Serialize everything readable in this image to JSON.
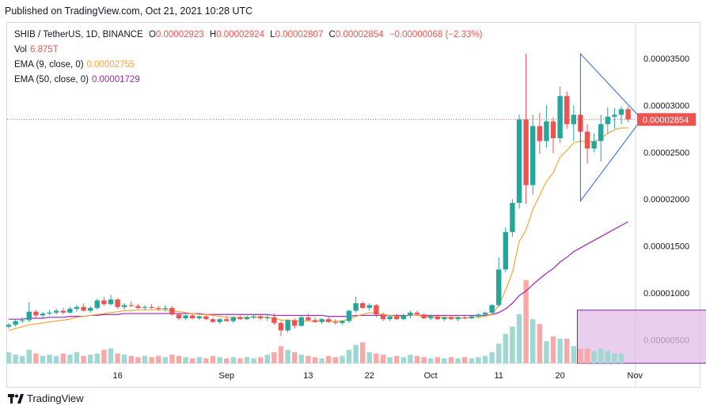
{
  "published": "Published on TradingView.com, Oct 21, 2021 10:28 UTC",
  "legend": {
    "symbol": "SHIB / TetherUS, 1D, BINANCE",
    "o_label": "O",
    "o_value": "0.00002923",
    "h_label": "H",
    "h_value": "0.00002924",
    "l_label": "L",
    "l_value": "0.00002807",
    "c_label": "C",
    "c_value": "0.00002854",
    "change": "−0.00000068 (−2.33%)",
    "vol_label": "Vol",
    "vol_value": "6.875T",
    "ema9_label": "EMA (9, close, 0)",
    "ema9_value": "0.00002755",
    "ema50_label": "EMA (50, close, 0)",
    "ema50_value": "0.00001729"
  },
  "last_price_tag": "0.00002854",
  "footer": {
    "brand": "TradingView"
  },
  "colors": {
    "up": "#26a69a",
    "down": "#ef5350",
    "up_vol": "#9fd8d2",
    "down_vol": "#f7a9a7",
    "ema9": "#f4a63a",
    "ema50": "#9c27b0",
    "triangle": "#2962ff",
    "box": "#e1bee7",
    "box_border": "#7b1fa2"
  },
  "chart_data": {
    "type": "candlestick",
    "y_ticks": [
      "0.00003500",
      "0.00003000",
      "0.00002500",
      "0.00002000",
      "0.00001500",
      "0.00001000",
      "0.00000500"
    ],
    "y_tick_values": [
      3.5e-05,
      3e-05,
      2.5e-05,
      2e-05,
      1.5e-05,
      1e-05,
      5e-06
    ],
    "x_ticks": [
      "16",
      "Sep",
      "13",
      "22",
      "Oct",
      "11",
      "20",
      "Nov"
    ],
    "x_tick_days": [
      16,
      32,
      44,
      53,
      62,
      72,
      81,
      92
    ],
    "ylim": [
      2.5e-06,
      3.88e-05
    ],
    "start_date": "2021-08-07",
    "candles": [
      [
        6.4e-06,
        6.8e-06,
        6.2e-06,
        6.6e-06
      ],
      [
        6.6e-06,
        7.2e-06,
        6.4e-06,
        7e-06
      ],
      [
        7e-06,
        7.4e-06,
        6.8e-06,
        7.1e-06
      ],
      [
        7.1e-06,
        9e-06,
        6.9e-06,
        8e-06
      ],
      [
        8e-06,
        8.2e-06,
        7.4e-06,
        7.6e-06
      ],
      [
        7.6e-06,
        8e-06,
        7.3e-06,
        7.8e-06
      ],
      [
        7.8e-06,
        8.2e-06,
        7.6e-06,
        7.9e-06
      ],
      [
        7.9e-06,
        8.3e-06,
        7.7e-06,
        8.1e-06
      ],
      [
        8.1e-06,
        8.4e-06,
        7.7e-06,
        7.9e-06
      ],
      [
        7.9e-06,
        8.5e-06,
        7.8e-06,
        8.3e-06
      ],
      [
        8.3e-06,
        8.7e-06,
        8e-06,
        8.5e-06
      ],
      [
        8.5e-06,
        8.9e-06,
        8e-06,
        8.1e-06
      ],
      [
        8.1e-06,
        8.6e-06,
        7.9e-06,
        8.4e-06
      ],
      [
        8.4e-06,
        9.4e-06,
        8.2e-06,
        9.2e-06
      ],
      [
        9.2e-06,
        9.6e-06,
        8.6e-06,
        8.8e-06
      ],
      [
        8.8e-06,
        9.8e-06,
        8.7e-06,
        9.3e-06
      ],
      [
        9.3e-06,
        9.4e-06,
        8.3e-06,
        8.5e-06
      ],
      [
        8.5e-06,
        8.9e-06,
        8.2e-06,
        8.7e-06
      ],
      [
        8.7e-06,
        9.1e-06,
        8.5e-06,
        8.6e-06
      ],
      [
        8.6e-06,
        8.8e-06,
        8.3e-06,
        8.4e-06
      ],
      [
        8.4e-06,
        8.7e-06,
        8.2e-06,
        8.5e-06
      ],
      [
        8.5e-06,
        8.8e-06,
        8.3e-06,
        8.4e-06
      ],
      [
        8.4e-06,
        8.6e-06,
        8.1e-06,
        8.3e-06
      ],
      [
        8.3e-06,
        8.7e-06,
        8e-06,
        8.4e-06
      ],
      [
        8.4e-06,
        8.6e-06,
        7.6e-06,
        7.7e-06
      ],
      [
        7.7e-06,
        7.9e-06,
        7.1e-06,
        7.3e-06
      ],
      [
        7.3e-06,
        7.7e-06,
        7.1e-06,
        7.6e-06
      ],
      [
        7.6e-06,
        7.8e-06,
        7.2e-06,
        7.3e-06
      ],
      [
        7.3e-06,
        7.6e-06,
        7.1e-06,
        7.5e-06
      ],
      [
        7.5e-06,
        7.7e-06,
        7.1e-06,
        7.2e-06
      ],
      [
        7.2e-06,
        7.4e-06,
        6.8e-06,
        6.9e-06
      ],
      [
        6.9e-06,
        7.3e-06,
        6.7e-06,
        7.2e-06
      ],
      [
        7.2e-06,
        7.5e-06,
        6.9e-06,
        7e-06
      ],
      [
        7e-06,
        7.5e-06,
        6.8e-06,
        7.4e-06
      ],
      [
        7.4e-06,
        7.6e-06,
        7.1e-06,
        7.2e-06
      ],
      [
        7.2e-06,
        7.6e-06,
        7.1e-06,
        7.4e-06
      ],
      [
        7.4e-06,
        7.7e-06,
        7.2e-06,
        7.5e-06
      ],
      [
        7.5e-06,
        7.8e-06,
        7.1e-06,
        7.3e-06
      ],
      [
        7.3e-06,
        7.7e-06,
        7e-06,
        7.4e-06
      ],
      [
        7.4e-06,
        7.8e-06,
        6.6e-06,
        6.8e-06
      ],
      [
        6.8e-06,
        7e-06,
        5.4e-06,
        6e-06
      ],
      [
        6e-06,
        7.2e-06,
        5.8e-06,
        7.1e-06
      ],
      [
        7.1e-06,
        7.3e-06,
        6.2e-06,
        6.5e-06
      ],
      [
        6.5e-06,
        7.6e-06,
        6.4e-06,
        7.4e-06
      ],
      [
        7.4e-06,
        7.8e-06,
        7e-06,
        7.1e-06
      ],
      [
        7.1e-06,
        7.4e-06,
        6.8e-06,
        6.9e-06
      ],
      [
        6.9e-06,
        7.3e-06,
        6.7e-06,
        7.2e-06
      ],
      [
        7.2e-06,
        7.4e-06,
        6.8e-06,
        6.9e-06
      ],
      [
        6.9e-06,
        7.2e-06,
        6.6e-06,
        6.8e-06
      ],
      [
        6.8e-06,
        7.1e-06,
        6.6e-06,
        7e-06
      ],
      [
        7e-06,
        8.2e-06,
        6.8e-06,
        8.1e-06
      ],
      [
        8.1e-06,
        9.6e-06,
        7.9e-06,
        8.9e-06
      ],
      [
        8.9e-06,
        9.1e-06,
        8.3e-06,
        8.4e-06
      ],
      [
        8.4e-06,
        8.9e-06,
        8.1e-06,
        8.7e-06
      ],
      [
        8.7e-06,
        8.8e-06,
        7.4e-06,
        7.7e-06
      ],
      [
        7.7e-06,
        7.9e-06,
        7e-06,
        7.2e-06
      ],
      [
        7.2e-06,
        7.6e-06,
        7e-06,
        7.5e-06
      ],
      [
        7.5e-06,
        7.8e-06,
        7.1e-06,
        7.2e-06
      ],
      [
        7.2e-06,
        7.8e-06,
        7.1e-06,
        7.6e-06
      ],
      [
        7.6e-06,
        8.1e-06,
        7.3e-06,
        7.9e-06
      ],
      [
        7.9e-06,
        8.1e-06,
        7.6e-06,
        7.7e-06
      ],
      [
        7.7e-06,
        7.8e-06,
        7.2e-06,
        7.3e-06
      ],
      [
        7.3e-06,
        7.7e-06,
        7.1e-06,
        7.5e-06
      ],
      [
        7.5e-06,
        7.7e-06,
        7.1e-06,
        7.2e-06
      ],
      [
        7.2e-06,
        7.5e-06,
        7e-06,
        7.4e-06
      ],
      [
        7.4e-06,
        7.6e-06,
        7.1e-06,
        7.2e-06
      ],
      [
        7.2e-06,
        7.5e-06,
        7e-06,
        7.4e-06
      ],
      [
        7.4e-06,
        7.6e-06,
        7.2e-06,
        7.3e-06
      ],
      [
        7.3e-06,
        7.6e-06,
        7.2e-06,
        7.5e-06
      ],
      [
        7.5e-06,
        7.8e-06,
        7.3e-06,
        7.7e-06
      ],
      [
        7.7e-06,
        8e-06,
        7.5e-06,
        7.9e-06
      ],
      [
        7.9e-06,
        8.8e-06,
        7.7e-06,
        8.7e-06
      ],
      [
        8.7e-06,
        1.38e-05,
        8.5e-06,
        1.25e-05
      ],
      [
        1.25e-05,
        1.7e-05,
        1.22e-05,
        1.65e-05
      ],
      [
        1.65e-05,
        2e-05,
        1.6e-05,
        1.96e-05
      ],
      [
        1.96e-05,
        2.9e-05,
        1.9e-05,
        2.85e-05
      ],
      [
        2.85e-05,
        3.55e-05,
        1.95e-05,
        2.15e-05
      ],
      [
        2.15e-05,
        2.9e-05,
        2.05e-05,
        2.78e-05
      ],
      [
        2.78e-05,
        2.92e-05,
        2.48e-05,
        2.62e-05
      ],
      [
        2.62e-05,
        3e-05,
        2.55e-05,
        2.83e-05
      ],
      [
        2.83e-05,
        2.87e-05,
        2.49e-05,
        2.65e-05
      ],
      [
        2.65e-05,
        3.2e-05,
        2.6e-05,
        3.1e-05
      ],
      [
        3.1e-05,
        3.15e-05,
        2.75e-05,
        2.8e-05
      ],
      [
        2.8e-05,
        3e-05,
        2.62e-05,
        2.9e-05
      ],
      [
        2.9e-05,
        2.95e-05,
        2.6e-05,
        2.72e-05
      ],
      [
        2.72e-05,
        2.8e-05,
        2.38e-05,
        2.54e-05
      ],
      [
        2.54e-05,
        2.7e-05,
        2.5e-05,
        2.62e-05
      ],
      [
        2.62e-05,
        2.9e-05,
        2.4e-05,
        2.8e-05
      ],
      [
        2.8e-05,
        2.98e-05,
        2.7e-05,
        2.88e-05
      ],
      [
        2.88e-05,
        2.97e-05,
        2.75e-05,
        2.9e-05
      ],
      [
        2.9e-05,
        2.99e-05,
        2.8e-05,
        2.96e-05
      ],
      [
        2.96e-05,
        2.99e-05,
        2.82e-05,
        2.85e-05
      ]
    ],
    "volumes": [
      0.45,
      0.35,
      0.3,
      0.55,
      0.4,
      0.3,
      0.35,
      0.3,
      0.4,
      0.35,
      0.45,
      0.3,
      0.35,
      0.4,
      0.55,
      0.6,
      0.4,
      0.35,
      0.3,
      0.25,
      0.3,
      0.25,
      0.3,
      0.25,
      0.35,
      0.3,
      0.25,
      0.2,
      0.25,
      0.2,
      0.3,
      0.25,
      0.2,
      0.25,
      0.2,
      0.25,
      0.2,
      0.25,
      0.35,
      0.45,
      0.7,
      0.55,
      0.45,
      0.35,
      0.3,
      0.25,
      0.2,
      0.3,
      0.25,
      0.3,
      0.55,
      0.75,
      0.85,
      0.45,
      0.4,
      0.35,
      0.25,
      0.3,
      0.25,
      0.35,
      0.3,
      0.25,
      0.2,
      0.25,
      0.2,
      0.25,
      0.2,
      0.25,
      0.2,
      0.25,
      0.3,
      0.45,
      0.8,
      1.2,
      1.5,
      2.0,
      3.4,
      1.8,
      1.6,
      0.9,
      1.1,
      1.0,
      1.0,
      0.7,
      0.6,
      0.6,
      0.5,
      0.6,
      0.5,
      0.4,
      0.4
    ],
    "ema9": [
      6e-06,
      6.2e-06,
      6.4e-06,
      6.6e-06,
      6.7e-06,
      6.8e-06,
      6.9e-06,
      7e-06,
      7.1e-06,
      7.2e-06,
      7.4e-06,
      7.5e-06,
      7.6e-06,
      7.7e-06,
      7.8e-06,
      7.9e-06,
      8e-06,
      8.1e-06,
      8.1e-06,
      8.2e-06,
      8.2e-06,
      8.2e-06,
      8.2e-06,
      8.2e-06,
      8.1e-06,
      8e-06,
      7.9e-06,
      7.8e-06,
      7.7e-06,
      7.7e-06,
      7.6e-06,
      7.5e-06,
      7.4e-06,
      7.4e-06,
      7.4e-06,
      7.4e-06,
      7.4e-06,
      7.4e-06,
      7.4e-06,
      7.3e-06,
      7.1e-06,
      7.1e-06,
      7e-06,
      7e-06,
      7e-06,
      7e-06,
      7e-06,
      7e-06,
      7e-06,
      7e-06,
      7.2e-06,
      7.5e-06,
      7.7e-06,
      7.9e-06,
      7.8e-06,
      7.7e-06,
      7.6e-06,
      7.5e-06,
      7.5e-06,
      7.6e-06,
      7.6e-06,
      7.5e-06,
      7.5e-06,
      7.4e-06,
      7.4e-06,
      7.4e-06,
      7.4e-06,
      7.3e-06,
      7.4e-06,
      7.4e-06,
      7.5e-06,
      7.7e-06,
      8.7e-06,
      1.03e-05,
      1.22e-05,
      1.55e-05,
      1.67e-05,
      1.89e-05,
      2.04e-05,
      2.19e-05,
      2.28e-05,
      2.45e-05,
      2.52e-05,
      2.6e-05,
      2.62e-05,
      2.61e-05,
      2.61e-05,
      2.65e-05,
      2.7e-05,
      2.74e-05,
      2.76e-05,
      2.76e-05
    ],
    "ema50": [
      7.2e-06,
      7.2e-06,
      7.2e-06,
      7.3e-06,
      7.3e-06,
      7.3e-06,
      7.4e-06,
      7.4e-06,
      7.4e-06,
      7.5e-06,
      7.5e-06,
      7.5e-06,
      7.6e-06,
      7.6e-06,
      7.7e-06,
      7.7e-06,
      7.7e-06,
      7.8e-06,
      7.8e-06,
      7.8e-06,
      7.8e-06,
      7.8e-06,
      7.8e-06,
      7.8e-06,
      7.8e-06,
      7.8e-06,
      7.8e-06,
      7.8e-06,
      7.8e-06,
      7.7e-06,
      7.7e-06,
      7.7e-06,
      7.7e-06,
      7.7e-06,
      7.7e-06,
      7.7e-06,
      7.7e-06,
      7.7e-06,
      7.7e-06,
      7.6e-06,
      7.6e-06,
      7.6e-06,
      7.6e-06,
      7.6e-06,
      7.6e-06,
      7.6e-06,
      7.6e-06,
      7.5e-06,
      7.5e-06,
      7.5e-06,
      7.5e-06,
      7.6e-06,
      7.6e-06,
      7.6e-06,
      7.6e-06,
      7.6e-06,
      7.6e-06,
      7.6e-06,
      7.6e-06,
      7.6e-06,
      7.6e-06,
      7.6e-06,
      7.6e-06,
      7.6e-06,
      7.6e-06,
      7.6e-06,
      7.6e-06,
      7.6e-06,
      7.6e-06,
      7.6e-06,
      7.6e-06,
      7.7e-06,
      7.9e-06,
      8.3e-06,
      8.9e-06,
      9.7e-06,
      1.02e-05,
      1.09e-05,
      1.15e-05,
      1.21e-05,
      1.26e-05,
      1.33e-05,
      1.38e-05,
      1.44e-05,
      1.48e-05,
      1.52e-05,
      1.56e-05,
      1.6e-05,
      1.64e-05,
      1.68e-05,
      1.72e-05,
      1.76e-05
    ],
    "triangle_days": [
      84,
      93,
      84
    ],
    "triangle_prices": [
      3.55e-05,
      2.854e-05,
      1.98e-05
    ],
    "volume_box_days": [
      84,
      104
    ],
    "volume_box_max": 1.55
  }
}
